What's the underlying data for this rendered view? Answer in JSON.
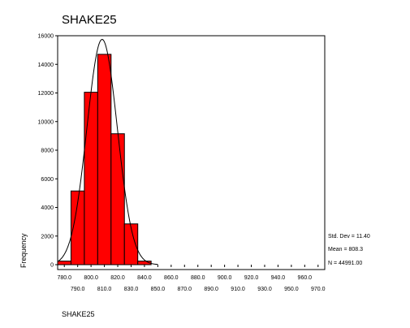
{
  "chart_data": {
    "type": "bar",
    "title": "SHAKE25",
    "xlabel": "SHAKE25",
    "ylabel": "Frequency",
    "ylim": [
      0,
      16000
    ],
    "y_ticks": [
      "0",
      "2000",
      "4000",
      "6000",
      "8000",
      "10000",
      "12000",
      "14000",
      "16000"
    ],
    "x_ticks_upper": [
      "780.0",
      "800.0",
      "820.0",
      "840.0",
      "860.0",
      "880.0",
      "900.0",
      "920.0",
      "940.0",
      "960.0"
    ],
    "x_ticks_lower": [
      "790.0",
      "810.0",
      "830.0",
      "850.0",
      "870.0",
      "890.0",
      "910.0",
      "930.0",
      "950.0",
      "970.0"
    ],
    "bin_width": 10,
    "bins": [
      {
        "center": 780,
        "value": 250
      },
      {
        "center": 790,
        "value": 5150
      },
      {
        "center": 800,
        "value": 12050
      },
      {
        "center": 810,
        "value": 14700
      },
      {
        "center": 820,
        "value": 9150
      },
      {
        "center": 830,
        "value": 2850
      },
      {
        "center": 840,
        "value": 250
      }
    ],
    "normal_curve": {
      "mean": 808.3,
      "std_dev": 11.4,
      "n": 44991
    },
    "bar_color": "#ff0000",
    "grid": false,
    "stats": {
      "std_dev_label": "Std. Dev = 11.40",
      "mean_label": "Mean = 808.3",
      "n_label": "N = 44991.00"
    }
  }
}
